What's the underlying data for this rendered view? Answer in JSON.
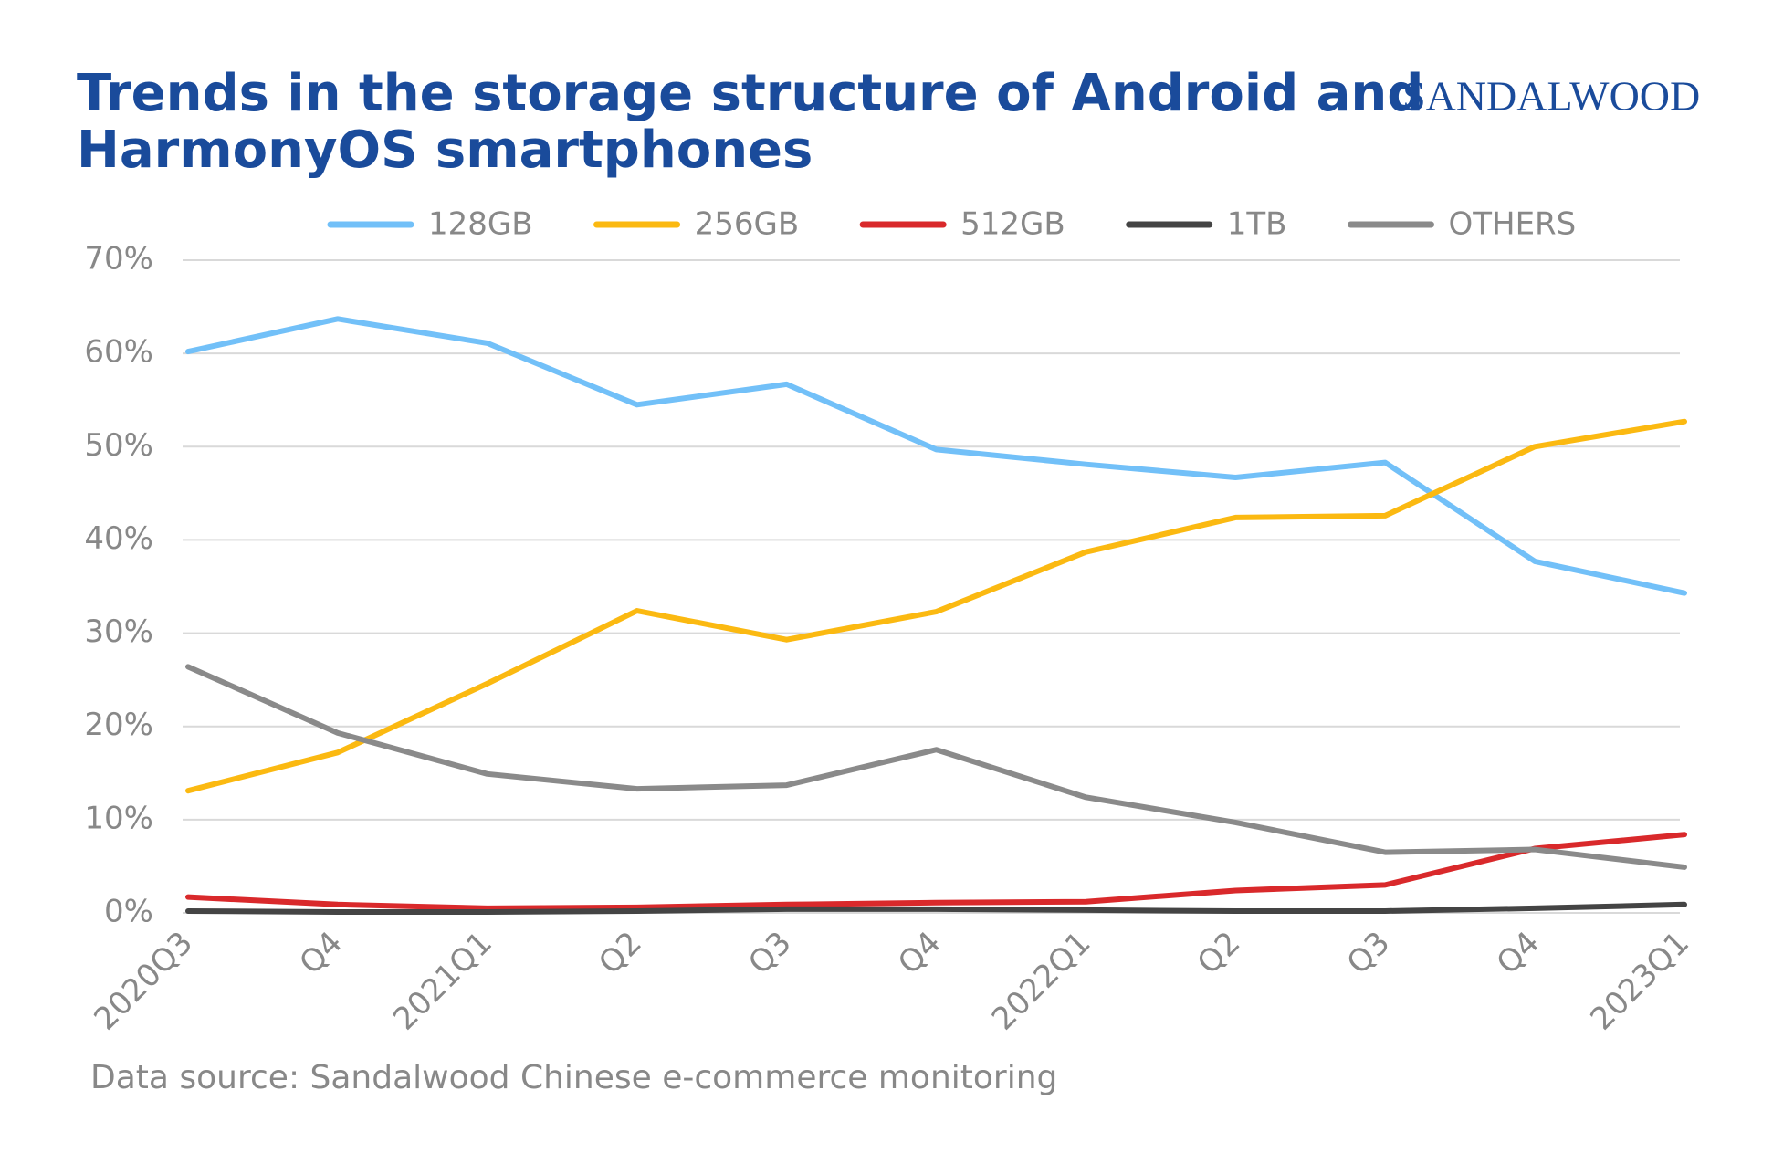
{
  "chart_data": {
    "type": "line",
    "title": "Trends in the storage structure of Android and HarmonyOS smartphones",
    "logo": "SANDALWOOD",
    "source": "Data source: Sandalwood Chinese e-commerce monitoring",
    "categories": [
      "2020Q3",
      "Q4",
      "2021Q1",
      "Q2",
      "Q3",
      "Q4",
      "2022Q1",
      "Q2",
      "Q3",
      "Q4",
      "2023Q1"
    ],
    "series": [
      {
        "name": "128GB",
        "color": "#72c0f8",
        "values": [
          60.2,
          63.7,
          61.1,
          54.5,
          56.7,
          49.7,
          48.1,
          46.7,
          48.3,
          37.7,
          34.3
        ]
      },
      {
        "name": "256GB",
        "color": "#fbb911",
        "values": [
          13.1,
          17.2,
          24.6,
          32.4,
          29.3,
          32.3,
          38.7,
          42.4,
          42.6,
          50.0,
          52.7
        ]
      },
      {
        "name": "512GB",
        "color": "#d9292b",
        "values": [
          1.7,
          0.9,
          0.5,
          0.6,
          0.9,
          1.1,
          1.2,
          2.4,
          3.0,
          6.9,
          8.4
        ]
      },
      {
        "name": "1TB",
        "color": "#444444",
        "values": [
          0.2,
          0.1,
          0.1,
          0.2,
          0.4,
          0.4,
          0.3,
          0.2,
          0.2,
          0.5,
          0.9
        ]
      },
      {
        "name": "OTHERS",
        "color": "#8a8a8a",
        "values": [
          26.4,
          19.3,
          14.9,
          13.3,
          13.7,
          17.5,
          12.4,
          9.7,
          6.5,
          6.8,
          4.9
        ]
      }
    ],
    "ylim": [
      0,
      70
    ],
    "yticks": [
      {
        "value": 0,
        "label": "0%"
      },
      {
        "value": 10,
        "label": "10%"
      },
      {
        "value": 20,
        "label": "20%"
      },
      {
        "value": 30,
        "label": "30%"
      },
      {
        "value": 40,
        "label": "40%"
      },
      {
        "value": 50,
        "label": "50%"
      },
      {
        "value": 60,
        "label": "60%"
      },
      {
        "value": 70,
        "label": "70%"
      }
    ],
    "grid": true
  }
}
